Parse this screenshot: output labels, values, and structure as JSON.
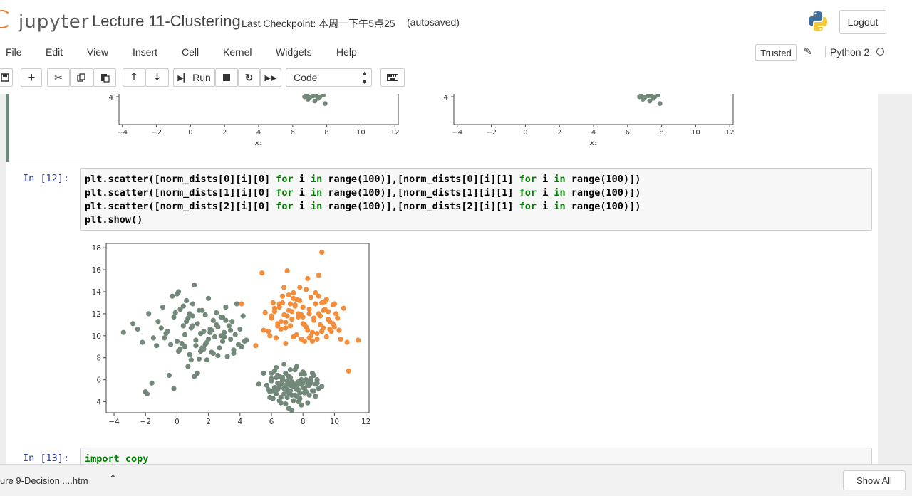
{
  "header": {
    "logo_text": "jupyter",
    "notebook_title": "Lecture 11-Clustering",
    "checkpoint": "Last Checkpoint: 本周一下午5点25",
    "autosave_status": "(autosaved)",
    "logout_label": "Logout"
  },
  "menu": {
    "items": [
      "File",
      "Edit",
      "View",
      "Insert",
      "Cell",
      "Kernel",
      "Widgets",
      "Help"
    ],
    "trusted_label": "Trusted",
    "kernel_name": "Python 2"
  },
  "toolbar": {
    "run_label": "Run",
    "cell_type": "Code"
  },
  "prev_output": {
    "tick_labels": [
      "−4",
      "−2",
      "0",
      "2",
      "4",
      "6",
      "8",
      "10",
      "12"
    ],
    "xlabel": "x₁",
    "ytick": "4"
  },
  "cell_12": {
    "prompt": "In [12]:",
    "lines": [
      "plt.scatter([norm_dists[0][i][0] for i in range(100)],[norm_dists[0][i][1] for i in range(100)])",
      "plt.scatter([norm_dists[1][i][0] for i in range(100)],[norm_dists[1][i][1] for i in range(100)])",
      "plt.scatter([norm_dists[2][i][0] for i in range(100)],[norm_dists[2][i][1] for i in range(100)])",
      "plt.show()"
    ]
  },
  "cell_13": {
    "prompt": "In [13]:",
    "lines": [
      "import copy"
    ]
  },
  "chart_data": {
    "type": "scatter",
    "xlim": [
      -4.5,
      12.2
    ],
    "ylim": [
      3,
      18.4
    ],
    "xticks": [
      -4,
      -2,
      0,
      2,
      4,
      6,
      8,
      10,
      12
    ],
    "yticks": [
      4,
      6,
      8,
      10,
      12,
      14,
      16,
      18
    ],
    "grid": false,
    "series": [
      {
        "color": "#72897a",
        "x": [
          -3.4,
          -2.8,
          -2.5,
          -2.2,
          -1.8,
          -1.5,
          -1.2,
          -0.9,
          -0.6,
          -0.4,
          -0.2,
          0.0,
          0.1,
          0.2,
          0.4,
          0.5,
          0.6,
          0.7,
          0.8,
          0.9,
          1.0,
          1.1,
          1.2,
          1.3,
          1.4,
          1.5,
          1.6,
          1.7,
          1.8,
          1.9,
          2.0,
          2.1,
          2.2,
          2.3,
          2.4,
          2.5,
          2.6,
          2.7,
          2.8,
          2.9,
          3.0,
          3.1,
          3.2,
          3.3,
          3.4,
          3.5,
          3.6,
          3.7,
          3.8,
          3.9,
          4.0,
          4.1,
          4.2,
          4.3,
          0.3,
          0.8,
          1.5,
          2.2,
          -0.3,
          0.6,
          1.9,
          3.0,
          -1.0,
          -0.1,
          1.2,
          2.5,
          3.6,
          0.1,
          1.0,
          2.0,
          -0.7,
          0.4,
          1.6,
          2.8,
          -1.9,
          -0.2,
          1.3,
          0.9,
          -2.0,
          -1.6,
          -0.5,
          0.7,
          1.1,
          2.3,
          3.1,
          3.9,
          0.0,
          1.7,
          2.6,
          -0.8,
          0.5,
          1.4,
          2.9,
          3.4,
          1.8,
          0.2,
          -1.3,
          2.1,
          4.4,
          1.0
        ],
        "y": [
          10.3,
          11.1,
          10.6,
          9.4,
          12.0,
          9.8,
          11.3,
          12.6,
          10.4,
          9.2,
          11.7,
          13.8,
          8.6,
          12.4,
          10.9,
          9.0,
          13.2,
          11.6,
          8.3,
          10.7,
          12.9,
          14.6,
          9.6,
          11.1,
          7.9,
          10.2,
          12.3,
          8.8,
          11.9,
          9.4,
          13.4,
          10.6,
          8.5,
          11.4,
          9.9,
          12.1,
          10.8,
          8.9,
          11.7,
          9.5,
          10.3,
          12.6,
          8.1,
          10.9,
          9.7,
          11.3,
          8.7,
          10.1,
          12.9,
          9.2,
          10.6,
          9.0,
          11.8,
          9.5,
          9.3,
          12.0,
          8.6,
          10.5,
          13.6,
          11.3,
          7.8,
          9.9,
          10.7,
          12.1,
          9.1,
          11.0,
          8.4,
          14.0,
          11.8,
          9.7,
          10.2,
          12.7,
          8.9,
          10.0,
          4.7,
          5.2,
          6.6,
          7.8,
          4.9,
          5.7,
          6.4,
          7.2,
          6.3,
          8.4,
          11.4,
          9.2,
          9.5,
          10.4,
          8.2,
          9.8,
          10.1,
          12.3,
          11.7,
          10.5,
          9.2,
          8.8,
          9.1,
          10.3,
          9.6,
          10.9
        ]
      },
      {
        "color": "#f28e3b",
        "x": [
          5.0,
          5.4,
          5.6,
          5.8,
          6.0,
          6.1,
          6.2,
          6.3,
          6.4,
          6.5,
          6.6,
          6.7,
          6.8,
          6.9,
          7.0,
          7.1,
          7.2,
          7.3,
          7.4,
          7.5,
          7.6,
          7.7,
          7.8,
          7.9,
          8.0,
          8.1,
          8.2,
          8.3,
          8.4,
          8.5,
          8.6,
          8.7,
          8.8,
          8.9,
          9.0,
          9.1,
          9.2,
          9.3,
          9.4,
          9.5,
          9.6,
          9.7,
          9.8,
          9.9,
          10.0,
          10.2,
          10.4,
          10.8,
          11.5,
          9.2,
          6.8,
          7.6,
          8.4,
          9.0,
          10.1,
          7.2,
          8.0,
          6.5,
          9.6,
          8.8,
          7.4,
          6.9,
          8.2,
          9.4,
          10.6,
          7.9,
          8.6,
          6.2,
          7.1,
          9.9,
          8.3,
          7.7,
          9.1,
          6.7,
          8.9,
          10.3,
          7.5,
          5.9,
          8.1,
          9.3,
          6.4,
          8.7,
          7.0,
          9.7,
          10.0,
          4.1,
          5.5,
          6.6,
          7.3,
          8.5,
          9.5,
          7.8,
          6.0,
          8.0,
          9.0,
          7.4,
          6.9,
          8.4,
          10.9,
          9.2
        ],
        "y": [
          9.1,
          15.7,
          12.1,
          10.4,
          11.6,
          13.0,
          12.5,
          9.8,
          11.1,
          12.9,
          10.6,
          13.6,
          11.9,
          9.3,
          15.9,
          12.3,
          10.9,
          11.5,
          13.9,
          12.7,
          10.1,
          11.7,
          13.2,
          9.7,
          12.6,
          11.0,
          14.2,
          10.5,
          12.0,
          13.5,
          9.5,
          11.4,
          12.9,
          10.2,
          15.5,
          11.8,
          13.0,
          10.7,
          12.4,
          9.9,
          12.2,
          11.3,
          10.4,
          12.8,
          10.8,
          11.6,
          9.7,
          9.4,
          9.6,
          17.6,
          14.4,
          13.3,
          12.4,
          13.6,
          12.0,
          12.9,
          11.7,
          12.6,
          11.5,
          13.9,
          9.9,
          11.2,
          10.8,
          13.1,
          12.5,
          11.9,
          10.3,
          12.2,
          13.7,
          11.1,
          15.2,
          12.0,
          11.0,
          13.0,
          9.7,
          10.5,
          12.8,
          10.0,
          9.5,
          12.3,
          10.9,
          11.6,
          11.8,
          10.6,
          12.9,
          12.9,
          10.5,
          11.3,
          12.2,
          10.0,
          13.3,
          14.4,
          11.8,
          11.1,
          12.0,
          13.4,
          10.7,
          9.8,
          6.8,
          10.4
        ]
      },
      {
        "color": "#72897a",
        "x": [
          5.7,
          5.9,
          6.0,
          6.1,
          6.2,
          6.3,
          6.4,
          6.5,
          6.6,
          6.7,
          6.8,
          6.9,
          7.0,
          7.1,
          7.2,
          7.3,
          7.4,
          7.5,
          7.6,
          7.7,
          7.8,
          7.9,
          8.0,
          8.1,
          8.2,
          8.3,
          8.4,
          8.5,
          8.6,
          8.7,
          8.8,
          8.9,
          9.0,
          9.2,
          6.3,
          6.8,
          7.2,
          7.6,
          8.0,
          6.6,
          7.4,
          7.9,
          6.0,
          6.9,
          7.7,
          8.3,
          7.1,
          6.4,
          8.6,
          7.5,
          5.2,
          5.5,
          6.2,
          7.0,
          7.8,
          8.5,
          6.7,
          7.3,
          8.1,
          6.5,
          7.6,
          8.8,
          7.2,
          6.8,
          5.9,
          7.9,
          8.2,
          6.1,
          7.0,
          7.4,
          6.6,
          7.7,
          8.4,
          6.3,
          7.1,
          8.0,
          6.9,
          7.5,
          6.0,
          8.7,
          7.3,
          6.5,
          7.8,
          8.3,
          6.7,
          7.2,
          8.9,
          6.2,
          7.0,
          7.6,
          5.8,
          8.1,
          7.9,
          6.8,
          7.4,
          6.4,
          7.1,
          8.5,
          7.7,
          6.9
        ],
        "y": [
          5.5,
          4.4,
          6.1,
          5.0,
          6.8,
          4.7,
          5.7,
          6.3,
          4.4,
          5.9,
          5.2,
          6.6,
          4.9,
          5.6,
          6.2,
          4.6,
          5.4,
          6.9,
          5.1,
          5.8,
          4.3,
          6.5,
          5.3,
          4.8,
          6.0,
          5.5,
          4.6,
          5.9,
          5.0,
          6.4,
          4.5,
          5.7,
          5.2,
          5.4,
          7.1,
          7.4,
          6.9,
          7.2,
          6.7,
          3.9,
          4.1,
          3.7,
          5.9,
          3.8,
          4.0,
          3.9,
          3.4,
          6.4,
          6.6,
          5.6,
          5.6,
          6.6,
          5.3,
          5.1,
          5.6,
          6.1,
          6.0,
          5.8,
          5.2,
          5.4,
          4.5,
          5.6,
          5.5,
          5.2,
          4.9,
          6.0,
          4.9,
          4.3,
          5.9,
          5.4,
          5.6,
          5.1,
          5.5,
          6.2,
          4.8,
          5.7,
          5.3,
          4.6,
          6.6,
          5.0,
          3.2,
          4.1,
          4.8,
          5.9,
          6.2,
          5.0,
          6.0,
          5.2,
          4.4,
          5.3,
          5.1,
          6.5,
          5.9,
          4.7,
          5.4,
          5.1,
          6.3,
          5.7,
          5.8,
          5.5
        ]
      }
    ]
  },
  "taskbar": {
    "download_item": "ure 9-Decision ....htm",
    "show_all_label": "Show All"
  }
}
